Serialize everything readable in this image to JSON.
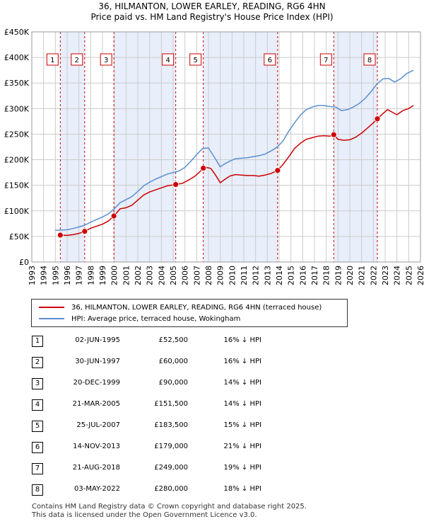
{
  "title": "36, HILMANTON, LOWER EARLEY, READING, RG6 4HN",
  "subtitle": "Price paid vs. HM Land Registry's House Price Index (HPI)",
  "colors": {
    "property": "#cc0000",
    "hpi": "#5b8fd1",
    "band": "#e8eefa",
    "grid": "#cccccc"
  },
  "chart_data": {
    "type": "line",
    "title": "36, HILMANTON, LOWER EARLEY, READING, RG6 4HN",
    "xlabel": "",
    "ylabel": "",
    "xlim": [
      1993,
      2026
    ],
    "ylim": [
      0,
      450000
    ],
    "yticks": [
      0,
      50000,
      100000,
      150000,
      200000,
      250000,
      300000,
      350000,
      400000,
      450000
    ],
    "ytick_labels": [
      "£0",
      "£50K",
      "£100K",
      "£150K",
      "£200K",
      "£250K",
      "£300K",
      "£350K",
      "£400K",
      "£450K"
    ],
    "xticks": [
      "1993",
      "1994",
      "1995",
      "1996",
      "1997",
      "1998",
      "1999",
      "2000",
      "2001",
      "2002",
      "2003",
      "2004",
      "2005",
      "2006",
      "2007",
      "2008",
      "2009",
      "2010",
      "2011",
      "2012",
      "2013",
      "2014",
      "2015",
      "2016",
      "2017",
      "2018",
      "2019",
      "2020",
      "2021",
      "2022",
      "2023",
      "2024",
      "2025",
      "2026"
    ],
    "series": [
      {
        "name": "36, HILMANTON, LOWER EARLEY, READING, RG6 4HN (terraced house)",
        "x": [
          1995.42,
          1996.0,
          1996.5,
          1997.0,
          1997.49,
          1998.0,
          1998.5,
          1999.0,
          1999.5,
          1999.97,
          2000.5,
          2001.0,
          2001.5,
          2002.0,
          2002.5,
          2003.0,
          2003.5,
          2004.0,
          2004.5,
          2005.22,
          2005.8,
          2006.3,
          2006.8,
          2007.2,
          2007.56,
          2007.8,
          2008.2,
          2008.6,
          2009.0,
          2009.3,
          2009.8,
          2010.3,
          2010.8,
          2011.3,
          2011.8,
          2012.3,
          2012.8,
          2013.3,
          2013.87,
          2014.3,
          2014.8,
          2015.3,
          2015.8,
          2016.3,
          2016.8,
          2017.3,
          2017.8,
          2018.3,
          2018.64,
          2019.0,
          2019.5,
          2020.0,
          2020.5,
          2021.0,
          2021.5,
          2022.0,
          2022.34,
          2022.8,
          2023.2,
          2023.6,
          2024.0,
          2024.5,
          2025.0,
          2025.4
        ],
        "values": [
          52500,
          52000,
          53500,
          56000,
          60000,
          66000,
          70000,
          74000,
          80000,
          90000,
          104000,
          106000,
          111000,
          121000,
          131000,
          137000,
          141000,
          145000,
          149000,
          151500,
          154000,
          160000,
          167000,
          175000,
          183500,
          185000,
          183000,
          170000,
          155000,
          160000,
          168000,
          171000,
          170000,
          169000,
          169000,
          168000,
          170000,
          173000,
          179000,
          190000,
          205000,
          222000,
          232000,
          240000,
          243000,
          246000,
          247000,
          246000,
          249000,
          240000,
          238000,
          239000,
          244000,
          252000,
          262000,
          272000,
          280000,
          290000,
          298000,
          293000,
          288000,
          296000,
          300000,
          306000
        ]
      },
      {
        "name": "HPI: Average price, terraced house, Wokingham",
        "x": [
          1995.0,
          1995.5,
          1996.0,
          1996.5,
          1997.0,
          1997.5,
          1998.0,
          1998.5,
          1999.0,
          1999.5,
          2000.0,
          2000.5,
          2001.0,
          2001.5,
          2002.0,
          2002.5,
          2003.0,
          2003.5,
          2004.0,
          2004.5,
          2005.0,
          2005.5,
          2006.0,
          2006.5,
          2007.0,
          2007.5,
          2008.0,
          2008.5,
          2009.0,
          2009.3,
          2009.8,
          2010.3,
          2010.8,
          2011.3,
          2011.8,
          2012.3,
          2012.8,
          2013.3,
          2013.8,
          2014.3,
          2014.8,
          2015.3,
          2015.8,
          2016.3,
          2016.8,
          2017.3,
          2017.8,
          2018.3,
          2018.8,
          2019.3,
          2019.8,
          2020.3,
          2020.8,
          2021.3,
          2021.8,
          2022.3,
          2022.8,
          2023.3,
          2023.8,
          2024.3,
          2024.8,
          2025.4
        ],
        "values": [
          62000,
          62500,
          63000,
          65500,
          68500,
          72000,
          78000,
          83000,
          88000,
          94000,
          104000,
          116000,
          122000,
          128000,
          138000,
          149000,
          156000,
          162000,
          167000,
          172000,
          175000,
          178000,
          185000,
          197000,
          210000,
          222000,
          223000,
          205000,
          186000,
          191000,
          197000,
          202000,
          203000,
          204000,
          206000,
          208000,
          211000,
          217000,
          224000,
          236000,
          255000,
          272000,
          287000,
          298000,
          303000,
          306000,
          306000,
          304000,
          303000,
          296000,
          298000,
          303000,
          310000,
          320000,
          333000,
          348000,
          358000,
          359000,
          352000,
          358000,
          368000,
          375000
        ]
      }
    ],
    "sales": [
      {
        "n": "1",
        "date": "02-JUN-1995",
        "price": "£52,500",
        "hpi": "16% ↓ HPI",
        "x": 1995.42,
        "value": 52500
      },
      {
        "n": "2",
        "date": "30-JUN-1997",
        "price": "£60,000",
        "hpi": "16% ↓ HPI",
        "x": 1997.49,
        "value": 60000
      },
      {
        "n": "3",
        "date": "20-DEC-1999",
        "price": "£90,000",
        "hpi": "14% ↓ HPI",
        "x": 1999.97,
        "value": 90000
      },
      {
        "n": "4",
        "date": "21-MAR-2005",
        "price": "£151,500",
        "hpi": "14% ↓ HPI",
        "x": 2005.22,
        "value": 151500
      },
      {
        "n": "5",
        "date": "25-JUL-2007",
        "price": "£183,500",
        "hpi": "15% ↓ HPI",
        "x": 2007.56,
        "value": 183500
      },
      {
        "n": "6",
        "date": "14-NOV-2013",
        "price": "£179,000",
        "hpi": "21% ↓ HPI",
        "x": 2013.87,
        "value": 179000
      },
      {
        "n": "7",
        "date": "21-AUG-2018",
        "price": "£249,000",
        "hpi": "19% ↓ HPI",
        "x": 2018.64,
        "value": 249000
      },
      {
        "n": "8",
        "date": "03-MAY-2022",
        "price": "£280,000",
        "hpi": "18% ↓ HPI",
        "x": 2022.34,
        "value": 280000
      }
    ]
  },
  "legend": {
    "property_label": "36, HILMANTON, LOWER EARLEY, READING, RG6 4HN (terraced house)",
    "hpi_label": "HPI: Average price, terraced house, Wokingham"
  },
  "footer": {
    "line1": "Contains HM Land Registry data © Crown copyright and database right 2025.",
    "line2": "This data is licensed under the Open Government Licence v3.0."
  }
}
